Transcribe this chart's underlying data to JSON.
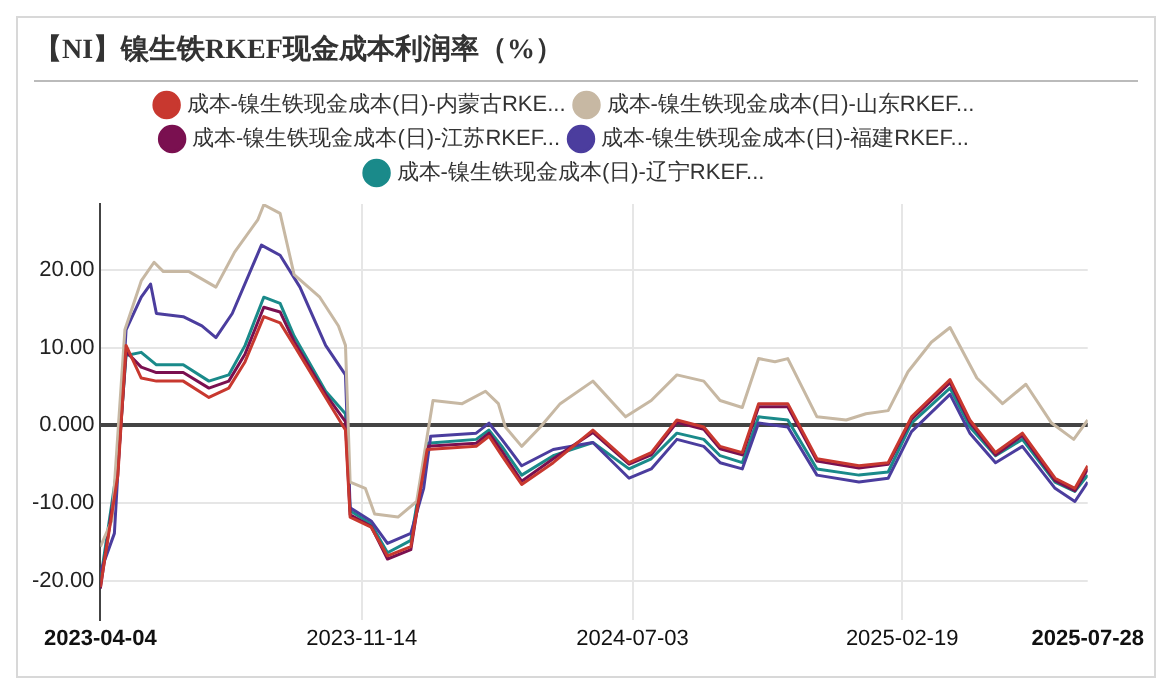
{
  "chart_data": {
    "type": "line",
    "title": "【NI】镍生铁RKEF现金成本利润率（%）",
    "x": [
      "2023-04-04",
      "2023-04-19",
      "2023-04-26",
      "2023-05-09",
      "2023-05-22",
      "2023-06-14",
      "2023-07-06",
      "2023-07-23",
      "2023-08-06",
      "2023-08-22",
      "2023-09-05",
      "2023-09-17",
      "2023-10-14",
      "2023-10-31",
      "2023-11-04",
      "2023-11-22",
      "2023-12-06",
      "2023-12-26",
      "2024-01-09",
      "2024-02-20",
      "2024-03-02",
      "2024-03-13",
      "2024-03-30",
      "2024-04-26",
      "2024-05-30",
      "2024-06-30",
      "2024-07-19",
      "2024-08-10",
      "2024-09-02",
      "2024-09-16",
      "2024-10-05",
      "2024-10-19",
      "2024-11-13",
      "2024-12-08",
      "2025-01-13",
      "2025-02-07",
      "2025-02-27",
      "2025-04-01",
      "2025-04-18",
      "2025-05-10",
      "2025-06-02",
      "2025-06-30",
      "2025-07-17",
      "2025-07-28"
    ],
    "series": [
      {
        "name": "成本-镍生铁现金成本(日)-内蒙古RKE...",
        "color": "#c8382f",
        "values": [
          -20.8,
          -6.4,
          10.3,
          6.1,
          5.7,
          5.7,
          3.6,
          4.8,
          8.2,
          14,
          13.2,
          10.3,
          3.6,
          -0.6,
          -11.8,
          -13.1,
          -16.8,
          -15.6,
          -3.1,
          -2.7,
          -1.4,
          -3.9,
          -7.6,
          -4.8,
          -0.6,
          -4.8,
          -3.5,
          0.7,
          -0.2,
          -2.7,
          -3.5,
          2.8,
          2.8,
          -4.3,
          -5.2,
          -4.8,
          1.1,
          5.9,
          0.7,
          -3.5,
          -1,
          -6.8,
          -8.1,
          -5.2
        ]
      },
      {
        "name": "成本-镍生铁现金成本(日)-山东RKEF...",
        "color": "#c7b8a3",
        "x": [
          "2023-04-04",
          "2023-04-14",
          "2023-04-25",
          "2023-05-09",
          "2023-05-20",
          "2023-05-28",
          "2023-06-19",
          "2023-07-12",
          "2023-07-28",
          "2023-08-17",
          "2023-08-22",
          "2023-09-05",
          "2023-09-17",
          "2023-10-09",
          "2023-10-25",
          "2023-10-31",
          "2023-11-04",
          "2023-11-17",
          "2023-11-25",
          "2023-12-15",
          "2023-12-31",
          "2024-01-09",
          "2024-01-14",
          "2024-02-08",
          "2024-02-28",
          "2024-03-10",
          "2024-03-16",
          "2024-03-30",
          "2024-04-15",
          "2024-05-02",
          "2024-05-30",
          "2024-06-27",
          "2024-07-19",
          "2024-08-10",
          "2024-09-02",
          "2024-09-16",
          "2024-10-05",
          "2024-10-19",
          "2024-11-02",
          "2024-11-13",
          "2024-12-08",
          "2025-01-02",
          "2025-01-19",
          "2025-02-07",
          "2025-02-24",
          "2025-03-16",
          "2025-04-01",
          "2025-04-24",
          "2025-05-16",
          "2025-06-05",
          "2025-06-27",
          "2025-07-16",
          "2025-07-28"
        ],
        "values": [
          -15.6,
          -12.2,
          12.3,
          18.6,
          21,
          19.8,
          19.8,
          17.8,
          22.3,
          26.5,
          28.4,
          27.3,
          19.4,
          16.5,
          12.8,
          10.3,
          -7.3,
          -8.1,
          -11.4,
          -11.8,
          -9.8,
          -1.4,
          3.2,
          2.8,
          4.4,
          2.8,
          -0.2,
          -2.7,
          -0.2,
          2.8,
          5.7,
          1.1,
          3.2,
          6.5,
          5.7,
          3.2,
          2.3,
          8.6,
          8.2,
          8.6,
          1.1,
          0.7,
          1.5,
          1.9,
          6.9,
          10.7,
          12.6,
          6.1,
          2.8,
          5.3,
          0.3,
          -1.8,
          0.7
        ]
      },
      {
        "name": "成本-镍生铁现金成本(日)-江苏RKEF...",
        "color": "#7a1050",
        "values": [
          -21,
          -5.5,
          9.5,
          7.5,
          6.8,
          6.8,
          4.8,
          5.7,
          9.2,
          15.2,
          14.6,
          10.8,
          4,
          0.5,
          -11.5,
          -13,
          -17.2,
          -16,
          -2.7,
          -2.3,
          -1,
          -3.3,
          -7.2,
          -4.3,
          -0.9,
          -5,
          -3.8,
          0.4,
          -0.5,
          -3,
          -3.8,
          2.4,
          2.4,
          -4.6,
          -5.5,
          -5,
          0.8,
          5.5,
          0.4,
          -3.8,
          -1.3,
          -7.1,
          -8.4,
          -5.6
        ]
      },
      {
        "name": "成本-镍生铁现金成本(日)-福建RKEF...",
        "color": "#4b3d9e",
        "x": [
          "2023-04-04",
          "2023-04-16",
          "2023-04-26",
          "2023-05-09",
          "2023-05-17",
          "2023-05-22",
          "2023-06-14",
          "2023-06-30",
          "2023-07-12",
          "2023-07-26",
          "2023-08-20",
          "2023-09-05",
          "2023-09-22",
          "2023-10-14",
          "2023-10-31",
          "2023-11-04",
          "2023-11-22",
          "2023-12-06",
          "2023-12-26",
          "2024-01-06",
          "2024-01-12",
          "2024-02-20",
          "2024-03-02",
          "2024-03-13",
          "2024-03-30",
          "2024-04-26",
          "2024-05-30",
          "2024-06-30",
          "2024-07-19",
          "2024-08-10",
          "2024-09-02",
          "2024-09-16",
          "2024-10-05",
          "2024-10-19",
          "2024-11-13",
          "2024-12-08",
          "2025-01-13",
          "2025-02-07",
          "2025-02-27",
          "2025-04-01",
          "2025-04-18",
          "2025-05-10",
          "2025-06-02",
          "2025-06-30",
          "2025-07-17",
          "2025-07-28"
        ],
        "values": [
          -18.9,
          -13.9,
          12.3,
          16.5,
          18.2,
          14.4,
          14,
          12.8,
          11.3,
          14.4,
          23.2,
          21.9,
          17.8,
          10.3,
          6.5,
          -10.6,
          -12.3,
          -15.2,
          -13.9,
          -8.1,
          -1.4,
          -1,
          0.3,
          -1.8,
          -5.2,
          -3.1,
          -2.2,
          -6.8,
          -5.6,
          -1.8,
          -2.7,
          -4.8,
          -5.6,
          0.3,
          -0.2,
          -6.4,
          -7.3,
          -6.8,
          -0.8,
          4,
          -1,
          -4.8,
          -2.7,
          -8.1,
          -9.8,
          -7.3
        ]
      },
      {
        "name": "成本-镍生铁现金成本(日)-辽宁RKEF...",
        "color": "#1a8a8a",
        "values": [
          -20,
          -4.8,
          9,
          9.4,
          7.8,
          7.8,
          5.7,
          6.5,
          10.3,
          16.5,
          15.7,
          11.5,
          4.4,
          1.5,
          -11,
          -12.7,
          -16.4,
          -14.8,
          -2.3,
          -1.8,
          -0.6,
          -2.7,
          -6.4,
          -3.9,
          -2.2,
          -5.6,
          -4.3,
          -1,
          -1.8,
          -3.9,
          -4.8,
          1.1,
          0.7,
          -5.6,
          -6.4,
          -6,
          0.3,
          4.8,
          -0.2,
          -3.9,
          -1.8,
          -7.3,
          -8.5,
          -6.4
        ]
      }
    ],
    "xlim": [
      "2023-04-04",
      "2025-07-28"
    ],
    "xticks": [
      "2023-04-04",
      "2023-11-14",
      "2024-07-03",
      "2025-02-19",
      "2025-07-28"
    ],
    "ylim": [
      -25,
      28.5
    ],
    "yticks": [
      {
        "value": -20,
        "label": "-20.00"
      },
      {
        "value": -10,
        "label": "-10.00"
      },
      {
        "value": 0,
        "label": "0.000"
      },
      {
        "value": 10,
        "label": "10.00"
      },
      {
        "value": 20,
        "label": "20.00"
      }
    ],
    "grid": true,
    "legend": "top",
    "marker": "none",
    "line_style": "solid"
  }
}
